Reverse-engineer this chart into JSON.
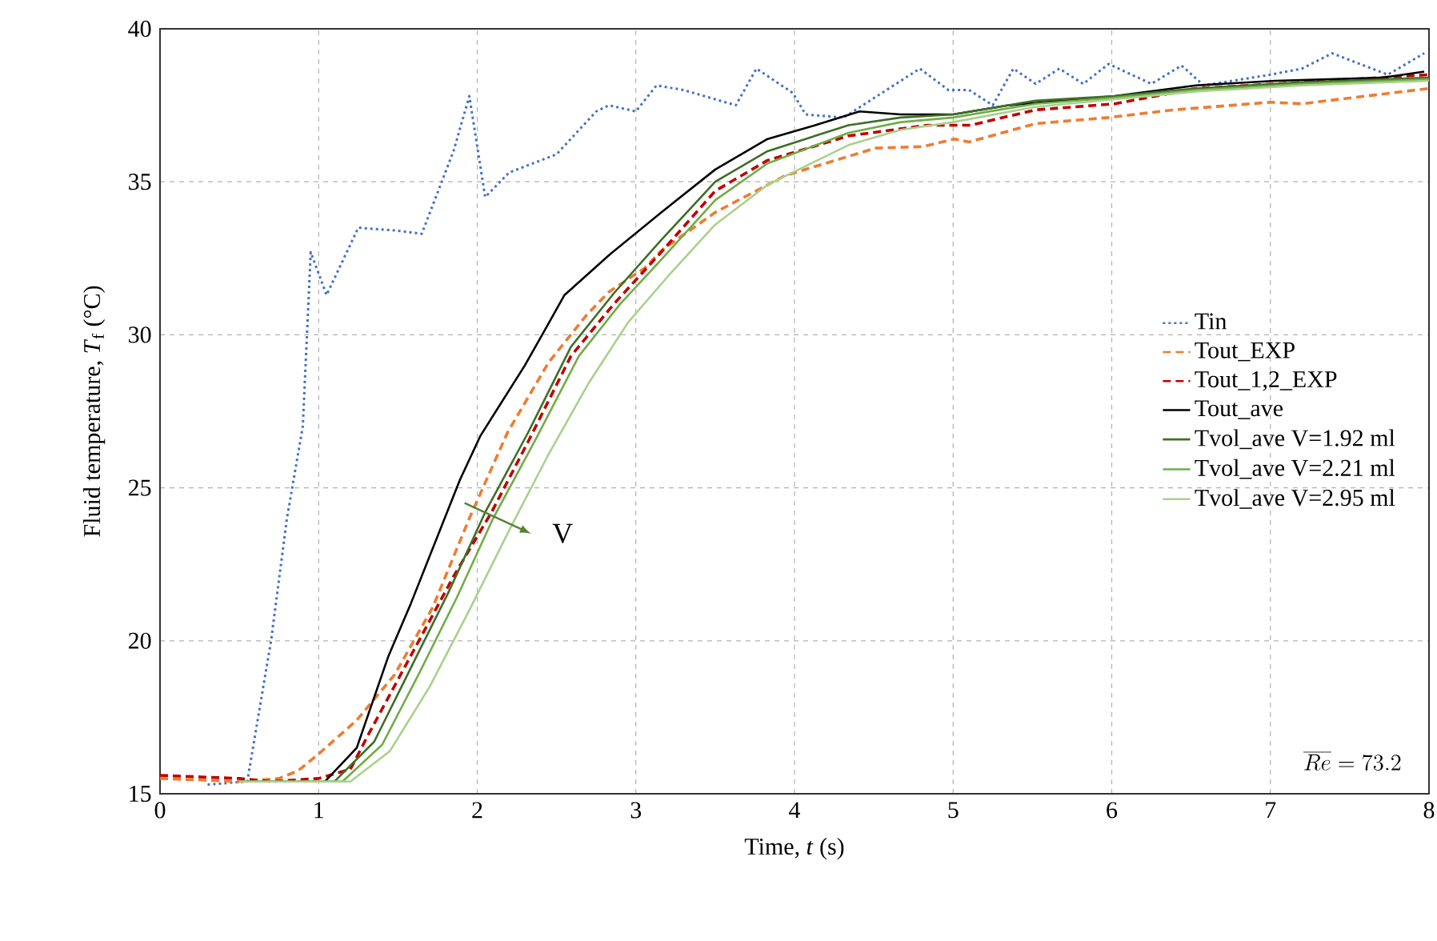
{
  "chart_data": {
    "type": "line",
    "xlabel": "Time, *t* (s)",
    "ylabel": "Fluid temperature, *T*$_{f}$ (°C)",
    "xlim": [
      0,
      8
    ],
    "ylim": [
      15,
      40
    ],
    "xticks": [
      0,
      1,
      2,
      3,
      4,
      5,
      6,
      7,
      8
    ],
    "yticks": [
      15,
      20,
      25,
      30,
      35,
      40
    ],
    "grid": true,
    "legend": "right",
    "annotations": [
      "V",
      "\\overline{Re} = 73.2"
    ],
    "series": [
      {
        "name": "Tin",
        "color": "#4472c4",
        "line_style": "dotted",
        "x": [
          0.3,
          0.55,
          0.7,
          0.8,
          0.9,
          0.95,
          1.05,
          1.25,
          1.5,
          1.65,
          1.85,
          1.95,
          2.05,
          2.2,
          2.5,
          2.75,
          2.83,
          3.0,
          3.13,
          3.3,
          3.63,
          3.76,
          3.99,
          4.07,
          4.31,
          4.79,
          4.97,
          5.1,
          5.25,
          5.38,
          5.52,
          5.67,
          5.82,
          5.98,
          6.25,
          6.44,
          6.58,
          7.0,
          7.2,
          7.39,
          7.74,
          7.97
        ],
        "values": [
          15.3,
          15.4,
          20,
          24,
          27,
          32.7,
          31.3,
          33.5,
          33.4,
          33.3,
          36,
          37.8,
          34.5,
          35.3,
          35.9,
          37.3,
          37.5,
          37.3,
          38.15,
          38.0,
          37.5,
          38.7,
          37.9,
          37.2,
          37.1,
          38.7,
          38.0,
          38.0,
          37.5,
          38.7,
          38.2,
          38.7,
          38.2,
          38.85,
          38.2,
          38.8,
          38.15,
          38.5,
          38.7,
          39.2,
          38.5,
          39.2
        ]
      },
      {
        "name": "Tout_EXP",
        "color": "#ed7d31",
        "line_style": "dashed",
        "x": [
          0,
          0.5,
          0.75,
          0.87,
          1.0,
          1.24,
          1.48,
          1.72,
          1.95,
          2.19,
          2.45,
          2.69,
          2.83,
          3.06,
          3.16,
          3.5,
          3.94,
          4.51,
          4.81,
          5.01,
          5.1,
          5.52,
          5.98,
          6.39,
          7.0,
          7.2,
          8.0
        ],
        "values": [
          15.5,
          15.4,
          15.5,
          15.75,
          16.3,
          17.4,
          18.9,
          21.1,
          24.0,
          26.8,
          29.1,
          30.65,
          31.4,
          32.2,
          32.75,
          34.0,
          35.2,
          36.1,
          36.15,
          36.4,
          36.3,
          36.9,
          37.1,
          37.35,
          37.6,
          37.55,
          38.05
        ]
      },
      {
        "name": "Tout_1,2_EXP",
        "color": "#c00000",
        "line_style": "dashed",
        "x": [
          0,
          0.5,
          0.7,
          1.0,
          1.2,
          1.31,
          1.58,
          1.85,
          2.09,
          2.32,
          2.59,
          2.86,
          3.16,
          3.5,
          3.83,
          4.34,
          4.84,
          5.11,
          5.52,
          6.02,
          6.53,
          7.37,
          8.0
        ],
        "values": [
          15.6,
          15.5,
          15.4,
          15.5,
          15.8,
          16.9,
          19.5,
          22.1,
          24.2,
          26.5,
          29.3,
          31.0,
          32.7,
          34.7,
          35.7,
          36.5,
          36.85,
          36.85,
          37.35,
          37.55,
          38.05,
          38.3,
          38.5
        ]
      },
      {
        "name": "Tout_ave",
        "color": "#000000",
        "line_style": "solid",
        "x": [
          1.04,
          1.24,
          1.44,
          1.58,
          1.89,
          2.02,
          2.3,
          2.42,
          2.55,
          2.83,
          3.16,
          3.5,
          3.83,
          4.1,
          4.41,
          4.67,
          5.0,
          5.35,
          6.02,
          6.53,
          7.03,
          7.7,
          7.97
        ],
        "values": [
          15.4,
          16.5,
          19.5,
          21.2,
          25.25,
          26.7,
          29.0,
          30.1,
          31.3,
          32.6,
          34.0,
          35.4,
          36.4,
          36.8,
          37.3,
          37.2,
          37.2,
          37.5,
          37.8,
          38.15,
          38.3,
          38.4,
          38.6
        ]
      },
      {
        "name": "Tvol_ave V=1.92 ml",
        "color": "#3f6e27",
        "line_style": "solid",
        "x": [
          0.5,
          1.1,
          1.35,
          1.58,
          1.82,
          2.05,
          2.32,
          2.59,
          2.86,
          3.16,
          3.5,
          3.83,
          4.34,
          4.67,
          5.0,
          5.52,
          6.02,
          6.53,
          7.2,
          8.0
        ],
        "values": [
          15.4,
          15.4,
          16.7,
          19.1,
          21.6,
          24.2,
          26.8,
          29.6,
          31.35,
          33.1,
          35.0,
          36.0,
          36.85,
          37.1,
          37.2,
          37.65,
          37.8,
          38.05,
          38.25,
          38.4
        ]
      },
      {
        "name": "Tvol_ave V=2.21 ml",
        "color": "#70ad47",
        "line_style": "solid",
        "x": [
          0.5,
          1.15,
          1.4,
          1.63,
          1.87,
          2.1,
          2.37,
          2.64,
          2.9,
          3.15,
          3.5,
          3.83,
          4.34,
          4.67,
          5.0,
          5.52,
          6.02,
          6.53,
          7.2,
          8.0
        ],
        "values": [
          15.4,
          15.4,
          16.6,
          18.9,
          21.4,
          24.0,
          26.6,
          29.3,
          31.0,
          32.4,
          34.4,
          35.6,
          36.6,
          36.95,
          37.1,
          37.55,
          37.75,
          38.0,
          38.2,
          38.35
        ]
      },
      {
        "name": "Tvol_ave V=2.95 ml",
        "color": "#a9d18e",
        "line_style": "solid",
        "x": [
          0.5,
          1.2,
          1.45,
          1.7,
          1.95,
          2.2,
          2.45,
          2.7,
          2.95,
          3.2,
          3.5,
          3.83,
          4.34,
          4.67,
          5.0,
          5.52,
          6.02,
          6.53,
          7.2,
          8.0
        ],
        "values": [
          15.4,
          15.4,
          16.4,
          18.5,
          21.0,
          23.6,
          26.1,
          28.4,
          30.4,
          31.9,
          33.6,
          34.9,
          36.2,
          36.7,
          36.95,
          37.45,
          37.7,
          37.95,
          38.15,
          38.3
        ]
      }
    ]
  }
}
